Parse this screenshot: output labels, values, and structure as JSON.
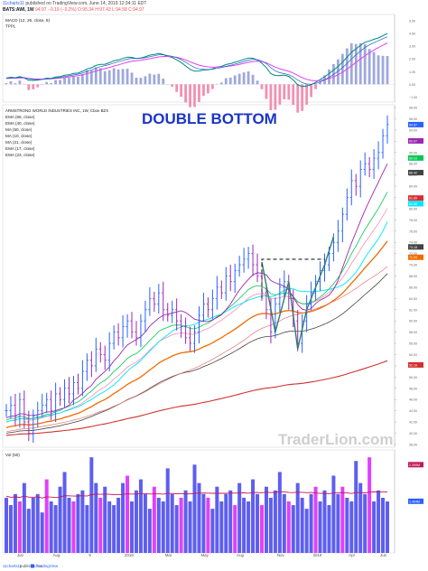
{
  "header": {
    "user": "11charts11",
    "published": "published on TradingView.com, June 14, 2019 12:34:11 EDT",
    "symbol": "BATS:AWI, 1W",
    "last": "94.97",
    "change": "−0.19 (−0.2%)",
    "ohlc": "O:95.34 H:97.43 L:94.58 C:94.97"
  },
  "footer": {
    "left": "11charts11",
    "mid": "published on",
    "brand": "TradingView"
  },
  "colors": {
    "price_up": "#2962ff",
    "price_down": "#9c27b0",
    "ema65": "#424242",
    "ema40": "#ef6c00",
    "ma50": "#e57373",
    "ma10": "#9c27b0",
    "ma21": "#00e5ff",
    "ema17": "#00c853",
    "ema23": "#f48fb1",
    "ma200": "#d32f2f",
    "macd_line": "#00897b",
    "signal": "#e040fb",
    "tppl": "#1565c0",
    "vol_bar": "#5e5ef0",
    "vol_ma": "#c2185b",
    "pattern": "#2e7d6f",
    "title": "#1a35c8",
    "watermark": "#cfcfcf"
  },
  "chart_data": [
    {
      "type": "line",
      "name": "macd",
      "legend": [
        "MACD (12, 26, close, 9)",
        "TPPL"
      ],
      "y_tick_labels": [
        "5.00",
        "4.00",
        "3.00",
        "2.00",
        "1.00",
        "0.00",
        "−1.00"
      ],
      "ylim": [
        -1.4,
        5.5
      ]
    },
    {
      "type": "line",
      "name": "price",
      "title": "DOUBLE BOTTOM",
      "legend": [
        "ARMSTRONG WORLD INDUSTRIES INC, 1W, Cboe BZX",
        "EMA (65, close)",
        "EMA (40, close)",
        "MA (50, close)",
        "MA (10, close)",
        "MA (21, close)",
        "EMA (17, close)",
        "EMA (23, close)"
      ],
      "y_tick_labels": [
        "98.00",
        "96.00",
        "94.00",
        "92.00",
        "90.00",
        "88.00",
        "86.00",
        "84.00",
        "82.00",
        "80.00",
        "78.00",
        "76.00",
        "74.00",
        "72.00",
        "70.00",
        "68.00",
        "66.00",
        "64.00",
        "62.00",
        "60.00",
        "58.00",
        "56.00",
        "54.00",
        "52.00",
        "50.00",
        "48.00",
        "46.00",
        "44.00",
        "42.00",
        "40.00",
        "38.00"
      ],
      "ylim": [
        37.5,
        98.5
      ],
      "price_tags": [
        {
          "label": "94.97",
          "value": 94.97,
          "color": "#2962ff"
        },
        {
          "label": "92.07",
          "value": 92.07,
          "color": "#9c27b0"
        },
        {
          "label": "89.03",
          "value": 89.03,
          "color": "#00c853"
        },
        {
          "label": "86.42",
          "value": 86.42,
          "color": "#424242"
        },
        {
          "label": "81.89",
          "value": 81.89,
          "color": "#d32f2f"
        },
        {
          "label": "80.88",
          "value": 80.88,
          "color": "#00e5ff"
        },
        {
          "label": "73.18",
          "value": 73.18,
          "color": "#424242"
        },
        {
          "label": "71.34",
          "value": 71.34,
          "color": "#ef6c00"
        },
        {
          "label": "52.16",
          "value": 52.16,
          "color": "#d32f2f"
        }
      ],
      "x_tick_labels": [
        "Jun",
        "Aug",
        "9",
        "2018",
        "Mar",
        "May",
        "Aug",
        "Nov",
        "2019",
        "Apr",
        "Jun"
      ],
      "closes": [
        44,
        45,
        43,
        46,
        42,
        40,
        43,
        44,
        45,
        46,
        44,
        47,
        46,
        48,
        47,
        49,
        48,
        51,
        53,
        52,
        55,
        54,
        53,
        56,
        58,
        57,
        59,
        60,
        58,
        57,
        60,
        62,
        64,
        63,
        65,
        62,
        61,
        62,
        60,
        59,
        57,
        56,
        58,
        61,
        63,
        62,
        64,
        66,
        65,
        68,
        67,
        69,
        70,
        71,
        72,
        70,
        68,
        65,
        62,
        58,
        63,
        66,
        67,
        64,
        60,
        56,
        60,
        63,
        65,
        67,
        69,
        70,
        72,
        74,
        76,
        79,
        82,
        85,
        84,
        87,
        88,
        87,
        89,
        90,
        93,
        95
      ],
      "watermark": "TraderLion.com"
    },
    {
      "type": "bar",
      "name": "volume",
      "legend": "Vol (50)",
      "y_tick_labels": [
        "2.399M",
        "1.404M"
      ],
      "values": [
        1.5,
        1.3,
        1.6,
        1.4,
        1.9,
        1.2,
        1.5,
        1.6,
        1.1,
        2.0,
        1.4,
        1.3,
        1.8,
        2.2,
        1.5,
        1.4,
        1.6,
        1.7,
        1.3,
        2.6,
        1.9,
        1.5,
        1.8,
        1.4,
        1.3,
        1.5,
        1.9,
        2.1,
        1.4,
        1.7,
        2.0,
        1.6,
        1.2,
        1.8,
        1.5,
        1.4,
        2.3,
        1.6,
        1.3,
        1.5,
        1.7,
        1.4,
        2.4,
        1.9,
        1.6,
        1.5,
        1.2,
        1.8,
        1.4,
        1.6,
        1.7,
        1.3,
        1.9,
        1.5,
        1.4,
        2.0,
        1.6,
        1.3,
        1.8,
        1.5,
        1.7,
        2.2,
        1.6,
        1.4,
        1.3,
        1.9,
        1.5,
        1.2,
        1.6,
        1.8,
        1.4,
        1.7,
        1.3,
        2.1,
        1.6,
        1.8,
        1.5,
        1.4,
        2.5,
        1.9,
        1.6,
        2.6,
        1.4,
        1.7,
        1.5,
        1.4
      ],
      "ylim": [
        0,
        2.8
      ]
    }
  ]
}
